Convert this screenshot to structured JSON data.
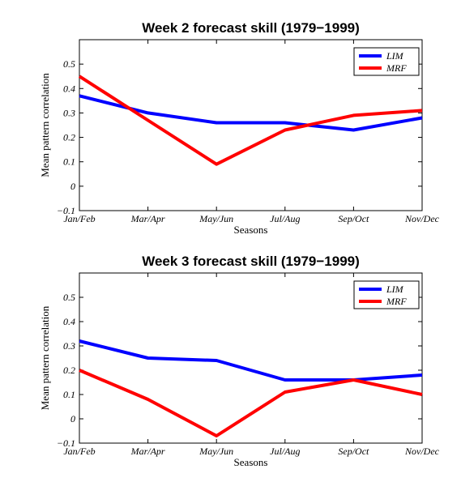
{
  "chart_data": [
    {
      "type": "line",
      "title": "Week 2 forecast skill (1979−1999)",
      "xlabel": "Seasons",
      "ylabel": "Mean pattern correlation",
      "categories": [
        "Jan/Feb",
        "Mar/Apr",
        "May/Jun",
        "Jul/Aug",
        "Sep/Oct",
        "Nov/Dec"
      ],
      "ylim": [
        -0.1,
        0.6
      ],
      "yticks": [
        -0.1,
        0,
        0.1,
        0.2,
        0.3,
        0.4,
        0.5
      ],
      "ytick_labels": [
        "−0.1",
        "0",
        "0.1",
        "0.2",
        "0.3",
        "0.4",
        "0.5"
      ],
      "legend_position": "top-right",
      "series": [
        {
          "name": "LIM",
          "color": "#0000ff",
          "values": [
            0.37,
            0.3,
            0.26,
            0.26,
            0.23,
            0.28
          ]
        },
        {
          "name": "MRF",
          "color": "#ff0000",
          "values": [
            0.45,
            0.27,
            0.09,
            0.23,
            0.29,
            0.31
          ]
        }
      ]
    },
    {
      "type": "line",
      "title": "Week 3 forecast skill (1979−1999)",
      "xlabel": "Seasons",
      "ylabel": "Mean pattern correlation",
      "categories": [
        "Jan/Feb",
        "Mar/Apr",
        "May/Jun",
        "Jul/Aug",
        "Sep/Oct",
        "Nov/Dec"
      ],
      "ylim": [
        -0.1,
        0.6
      ],
      "yticks": [
        -0.1,
        0,
        0.1,
        0.2,
        0.3,
        0.4,
        0.5
      ],
      "ytick_labels": [
        "−0.1",
        "0",
        "0.1",
        "0.2",
        "0.3",
        "0.4",
        "0.5"
      ],
      "legend_position": "top-right",
      "series": [
        {
          "name": "LIM",
          "color": "#0000ff",
          "values": [
            0.32,
            0.25,
            0.24,
            0.16,
            0.16,
            0.18
          ]
        },
        {
          "name": "MRF",
          "color": "#ff0000",
          "values": [
            0.2,
            0.08,
            -0.07,
            0.11,
            0.16,
            0.1
          ]
        }
      ]
    }
  ]
}
